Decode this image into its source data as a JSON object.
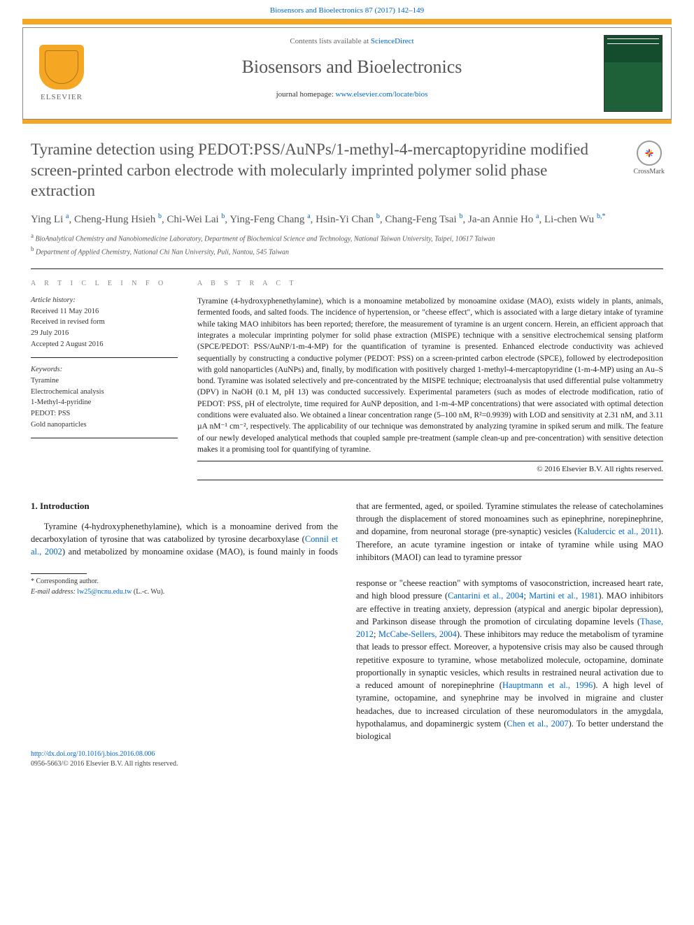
{
  "header": {
    "top_link_prefix": "Biosensors and Bioelectronics 87 (2017) 142–149",
    "contents_line_1": "Contents lists available at ",
    "sciencedirect": "ScienceDirect",
    "journal_name": "Biosensors and Bioelectronics",
    "homepage_label": "journal homepage: ",
    "homepage_url": "www.elsevier.com/locate/bios",
    "publisher_logo_label": "ELSEVIER"
  },
  "crossmark_label": "CrossMark",
  "title": "Tyramine detection using PEDOT:PSS/AuNPs/1-methyl-4-mercaptopyridine modified screen-printed carbon electrode with molecularly imprinted polymer solid phase extraction",
  "authors_html": "Ying Li <sup>a</sup>, Cheng-Hung Hsieh <sup>b</sup>, Chi-Wei Lai <sup>b</sup>, Ying-Feng Chang <sup>a</sup>, Hsin-Yi Chan <sup>b</sup>, Chang-Feng Tsai <sup>b</sup>, Ja-an Annie Ho <sup>a</sup>, Li-chen Wu <sup>b,</sup><span class='star-sup'><sup>*</sup></span>",
  "affiliations": {
    "a": "BioAnalytical Chemistry and Nanobiomedicine Laboratory, Department of Biochemical Science and Technology, National Taiwan University, Taipei, 10617 Taiwan",
    "b": "Department of Applied Chemistry, National Chi Nan University, Puli, Nantou, 545 Taiwan"
  },
  "article_info": {
    "heading": "A R T I C L E  I N F O",
    "history_label": "Article history:",
    "received": "Received 11 May 2016",
    "revised_1": "Received in revised form",
    "revised_2": "29 July 2016",
    "accepted": "Accepted 2 August 2016",
    "keywords_label": "Keywords:",
    "keywords": [
      "Tyramine",
      "Electrochemical analysis",
      "1-Methyl-4-pyridine",
      "PEDOT: PSS",
      "Gold nanoparticles"
    ]
  },
  "abstract": {
    "heading": "A B S T R A C T",
    "text": "Tyramine (4-hydroxyphenethylamine), which is a monoamine metabolized by monoamine oxidase (MAO), exists widely in plants, animals, fermented foods, and salted foods. The incidence of hypertension, or \"cheese effect\", which is associated with a large dietary intake of tyramine while taking MAO inhibitors has been reported; therefore, the measurement of tyramine is an urgent concern. Herein, an efficient approach that integrates a molecular imprinting polymer for solid phase extraction (MISPE) technique with a sensitive electrochemical sensing platform (SPCE/PEDOT: PSS/AuNP/1-m-4-MP) for the quantification of tyramine is presented. Enhanced electrode conductivity was achieved sequentially by constructing a conductive polymer (PEDOT: PSS) on a screen-printed carbon electrode (SPCE), followed by electrodeposition with gold nanoparticles (AuNPs) and, finally, by modification with positively charged 1-methyl-4-mercaptopyridine (1-m-4-MP) using an Au–S bond. Tyramine was isolated selectively and pre-concentrated by the MISPE technique; electroanalysis that used differential pulse voltammetry (DPV) in NaOH (0.1 M, pH 13) was conducted successively. Experimental parameters (such as modes of electrode modification, ratio of PEDOT: PSS, pH of electrolyte, time required for AuNP deposition, and 1-m-4-MP concentrations) that were associated with optimal detection conditions were evaluated also. We obtained a linear concentration range (5–100 nM, R²=0.9939) with LOD and sensitivity at 2.31 nM, and 3.11 µA nM⁻¹ cm⁻², respectively. The applicability of our technique was demonstrated by analyzing tyramine in spiked serum and milk. The feature of our newly developed analytical methods that coupled sample pre-treatment (sample clean-up and pre-concentration) with sensitive detection makes it a promising tool for quantifying of tyramine.",
    "copyright": "© 2016 Elsevier B.V. All rights reserved."
  },
  "section1_heading": "1.  Introduction",
  "body_left": "Tyramine (4-hydroxyphenethylamine), which is a monoamine derived from the decarboxylation of tyrosine that was catabolized by tyrosine decarboxylase (Connil et al., 2002) and metabolized by monoamine oxidase (MAO), is found mainly in foods that are fermented, aged, or spoiled. Tyramine stimulates the release of catecholamines through the displacement of stored monoamines such as epinephrine, norepinephrine, and dopamine, from neuronal storage (pre-synaptic) vesicles (Kaludercic et al., 2011). Therefore, an acute tyramine ingestion or intake of tyramine while using MAO inhibitors (MAOI) can lead to tyramine pressor",
  "body_right": "response or \"cheese reaction\" with symptoms of vasoconstriction, increased heart rate, and high blood pressure (Cantarini et al., 2004; Martini et al., 1981). MAO inhibitors are effective in treating anxiety, depression (atypical and anergic bipolar depression), and Parkinson disease through the promotion of circulating dopamine levels (Thase, 2012; McCabe-Sellers, 2004). These inhibitors may reduce the metabolism of tyramine that leads to pressor effect. Moreover, a hypotensive crisis may also be caused through repetitive exposure to tyramine, whose metabolized molecule, octopamine, dominate proportionally in synaptic vesicles, which results in restrained neural activation due to a reduced amount of norepinephrine (Hauptmann et al., 1996). A high level of tyramine, octopamine, and synephrine may be involved in migraine and cluster headaches, due to increased circulation of these neuromodulators in the amygdala, hypothalamus, and dopaminergic system (Chen et al., 2007). To better understand the biological",
  "links": {
    "connil": "Connil et al., 2002",
    "kaludercic": "Kaludercic et al., 2011",
    "cantarini": "Cantarini et al., 2004",
    "martini": "Martini et al., 1981",
    "thase": "Thase, 2012",
    "mccabe": "McCabe-Sellers, 2004",
    "hauptmann": "Hauptmann et al., 1996",
    "chen": "Chen et al., 2007"
  },
  "footnote": {
    "corr_label": "* Corresponding author.",
    "email_label": "E-mail address: ",
    "email": "lw25@ncnu.edu.tw",
    "email_suffix": " (L.-c. Wu)."
  },
  "bottom": {
    "doi": "http://dx.doi.org/10.1016/j.bios.2016.08.006",
    "issn_line": "0956-5663/© 2016 Elsevier B.V. All rights reserved."
  },
  "colors": {
    "accent_orange": "#f5a623",
    "link_blue": "#0066cc",
    "text_gray": "#555555",
    "cover_green": "#1e6038"
  }
}
